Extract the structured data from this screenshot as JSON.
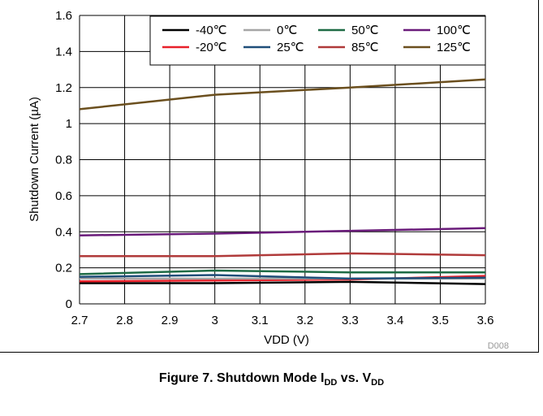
{
  "chart_data": {
    "type": "line",
    "chart_id": "D008",
    "xlabel": "VDD (V)",
    "ylabel": "Shutdown Current (µA)",
    "xlim": [
      2.7,
      3.6
    ],
    "ylim": [
      0,
      1.6
    ],
    "x_ticks": [
      "2.7",
      "2.8",
      "2.9",
      "3",
      "3.1",
      "3.2",
      "3.3",
      "3.4",
      "3.5",
      "3.6"
    ],
    "y_ticks": [
      "0",
      "0.2",
      "0.4",
      "0.6",
      "0.8",
      "1",
      "1.2",
      "1.4",
      "1.6"
    ],
    "grid": true,
    "legend_position": "top-right",
    "x": [
      2.7,
      3.0,
      3.3,
      3.6
    ],
    "series": [
      {
        "name": "-40℃",
        "color": "#000000",
        "values": [
          0.115,
          0.115,
          0.122,
          0.11
        ]
      },
      {
        "name": "-20℃",
        "color": "#e8202a",
        "values": [
          0.125,
          0.13,
          0.135,
          0.155
        ]
      },
      {
        "name": "0℃",
        "color": "#a6a6a6",
        "values": [
          0.14,
          0.14,
          0.14,
          0.14
        ]
      },
      {
        "name": "25℃",
        "color": "#1f4e79",
        "values": [
          0.15,
          0.16,
          0.14,
          0.145
        ]
      },
      {
        "name": "50℃",
        "color": "#1e6b45",
        "values": [
          0.165,
          0.185,
          0.175,
          0.175
        ]
      },
      {
        "name": "85℃",
        "color": "#b03a3a",
        "values": [
          0.265,
          0.265,
          0.28,
          0.27
        ]
      },
      {
        "name": "100℃",
        "color": "#6a1b7a",
        "values": [
          0.38,
          0.39,
          0.405,
          0.42
        ]
      },
      {
        "name": "125℃",
        "color": "#6b4f1e",
        "values": [
          1.08,
          1.16,
          1.2,
          1.245
        ]
      }
    ]
  },
  "caption": {
    "prefix": "Figure 7. Shutdown Mode I",
    "sub1": "DD",
    "middle": " vs. V",
    "sub2": "DD"
  }
}
